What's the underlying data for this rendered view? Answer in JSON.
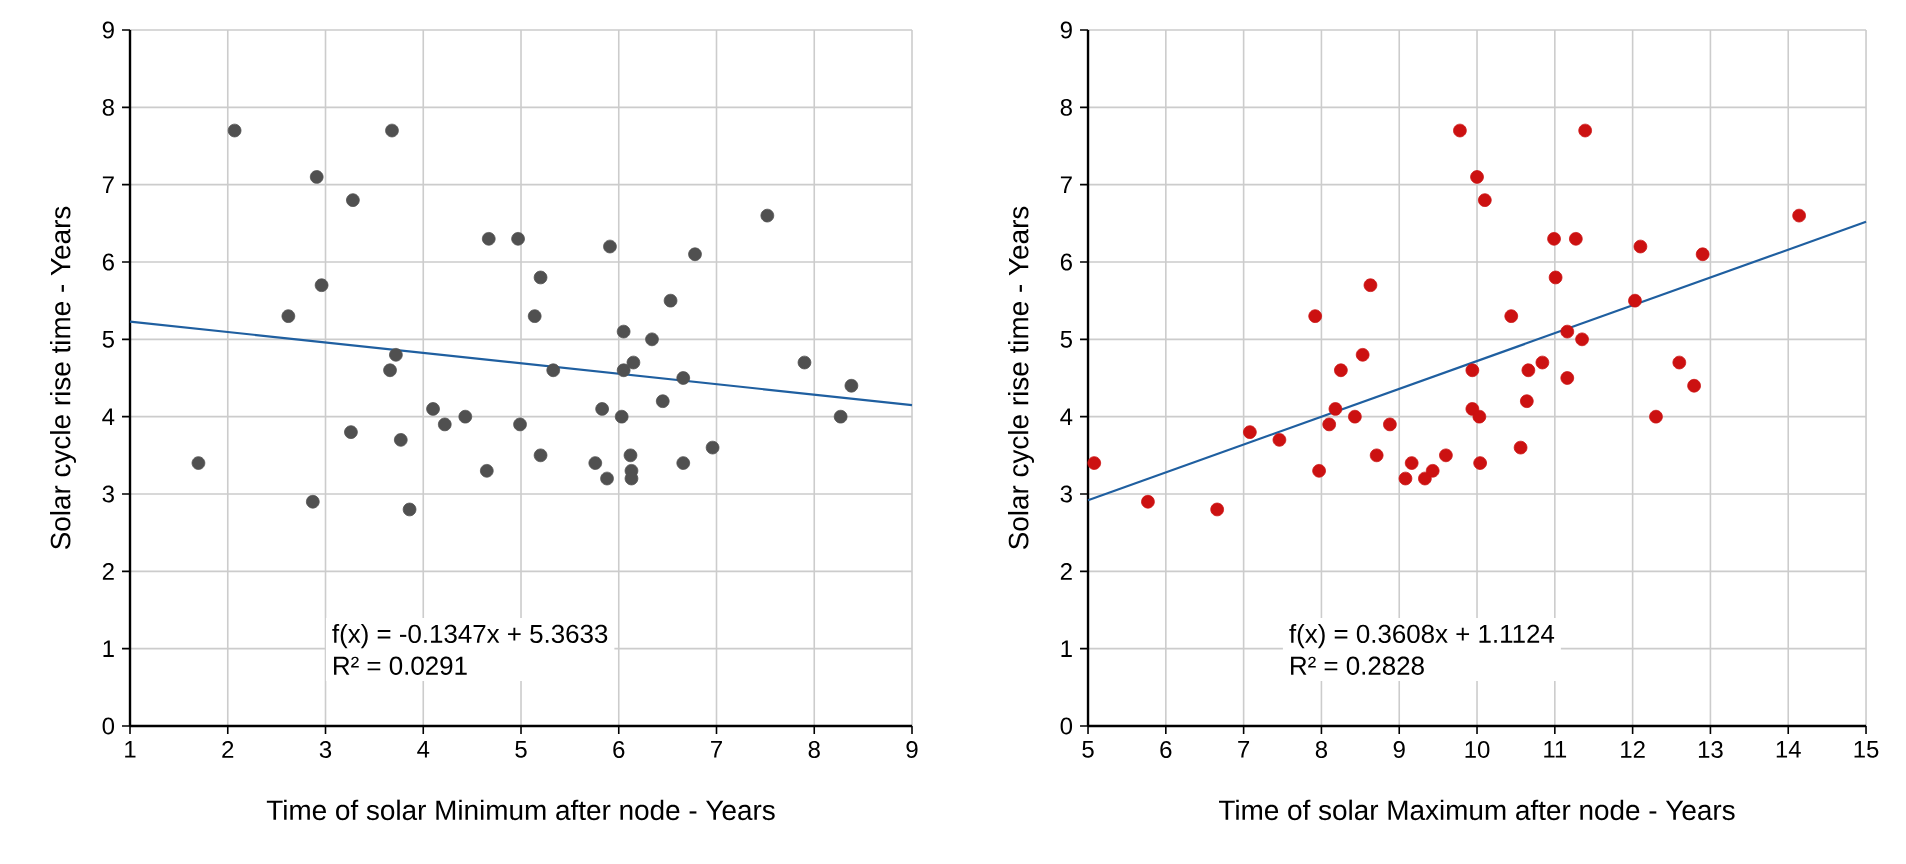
{
  "chart_data": [
    {
      "type": "scatter",
      "xlabel": "Time of solar Minimum after node - Years",
      "ylabel": "Solar cycle rise time - Years",
      "xlim": [
        1,
        9
      ],
      "ylim": [
        0,
        9
      ],
      "xticks": [
        1,
        2,
        3,
        4,
        5,
        6,
        7,
        8,
        9
      ],
      "yticks": [
        0,
        1,
        2,
        3,
        4,
        5,
        6,
        7,
        8,
        9
      ],
      "grid": true,
      "marker": "circle",
      "series": [
        {
          "type": "scatter",
          "color": "#505050",
          "x": [
            1.7,
            2.07,
            2.62,
            2.91,
            2.96,
            2.87,
            3.28,
            3.26,
            3.68,
            3.66,
            3.72,
            3.77,
            3.86,
            4.1,
            4.22,
            4.43,
            4.67,
            4.65,
            4.97,
            4.99,
            5.2,
            5.14,
            5.2,
            5.33,
            5.76,
            5.83,
            5.91,
            5.88,
            6.03,
            6.05,
            6.05,
            6.15,
            6.12,
            6.13,
            6.13,
            6.34,
            6.45,
            6.53,
            6.66,
            6.66,
            6.78,
            6.96,
            7.52,
            7.9,
            8.27,
            8.38
          ],
          "values": [
            3.4,
            7.7,
            5.3,
            7.1,
            5.7,
            2.9,
            6.8,
            3.8,
            7.7,
            4.6,
            4.8,
            3.7,
            2.8,
            4.1,
            3.9,
            4.0,
            6.3,
            3.3,
            6.3,
            3.9,
            5.8,
            5.3,
            3.5,
            4.6,
            3.4,
            4.1,
            6.2,
            3.2,
            4.0,
            5.1,
            4.6,
            4.7,
            3.5,
            3.3,
            3.2,
            5.0,
            4.2,
            5.5,
            4.5,
            3.4,
            6.1,
            3.6,
            6.6,
            4.7,
            4.0,
            4.4
          ]
        },
        {
          "type": "line",
          "marker": "none",
          "color": "#1f5fa0",
          "x": [
            1,
            9
          ],
          "values": [
            5.23,
            4.15
          ]
        }
      ],
      "annotations": [
        "f(x) = -0.1347x + 5.3633",
        "R² = 0.0291"
      ]
    },
    {
      "type": "scatter",
      "xlabel": "Time of solar Maximum after node - Years",
      "ylabel": "Solar cycle rise time - Years",
      "xlim": [
        5,
        15
      ],
      "ylim": [
        0,
        9
      ],
      "xticks": [
        5,
        6,
        7,
        8,
        9,
        10,
        11,
        12,
        13,
        14,
        15
      ],
      "yticks": [
        0,
        1,
        2,
        3,
        4,
        5,
        6,
        7,
        8,
        9
      ],
      "grid": true,
      "marker": "circle",
      "series": [
        {
          "type": "scatter",
          "color": "#cc1111",
          "x": [
            9.78,
            11.39,
            10.0,
            10.1,
            10.99,
            11.27,
            12.1,
            12.9,
            14.14,
            8.63,
            11.01,
            7.92,
            10.44,
            12.03,
            11.16,
            11.35,
            8.53,
            8.25,
            9.94,
            10.66,
            10.84,
            11.16,
            12.6,
            12.79,
            8.18,
            8.1,
            8.43,
            8.88,
            9.94,
            10.03,
            10.64,
            12.3,
            7.08,
            7.46,
            5.08,
            5.77,
            6.66,
            7.97,
            8.71,
            9.16,
            9.08,
            9.33,
            9.43,
            9.6,
            10.04,
            10.56
          ],
          "values": [
            7.7,
            7.7,
            7.1,
            6.8,
            6.3,
            6.3,
            6.2,
            6.1,
            6.6,
            5.7,
            5.8,
            5.3,
            5.3,
            5.5,
            5.1,
            5.0,
            4.8,
            4.6,
            4.6,
            4.6,
            4.7,
            4.5,
            4.7,
            4.4,
            4.1,
            3.9,
            4.0,
            3.9,
            4.1,
            4.0,
            4.2,
            4.0,
            3.8,
            3.7,
            3.4,
            2.9,
            2.8,
            3.3,
            3.5,
            3.4,
            3.2,
            3.2,
            3.3,
            3.5,
            3.4,
            3.6
          ]
        },
        {
          "type": "line",
          "marker": "none",
          "color": "#1f5fa0",
          "x": [
            5,
            15
          ],
          "values": [
            2.92,
            6.52
          ]
        }
      ],
      "annotations": [
        "f(x) = 0.3608x + 1.1124",
        "R² = 0.2828"
      ]
    }
  ]
}
